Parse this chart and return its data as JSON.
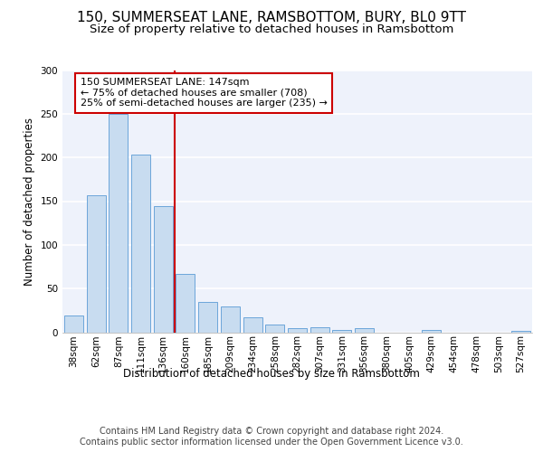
{
  "title1": "150, SUMMERSEAT LANE, RAMSBOTTOM, BURY, BL0 9TT",
  "title2": "Size of property relative to detached houses in Ramsbottom",
  "xlabel": "Distribution of detached houses by size in Ramsbottom",
  "ylabel": "Number of detached properties",
  "categories": [
    "38sqm",
    "62sqm",
    "87sqm",
    "111sqm",
    "136sqm",
    "160sqm",
    "185sqm",
    "209sqm",
    "234sqm",
    "258sqm",
    "282sqm",
    "307sqm",
    "331sqm",
    "356sqm",
    "380sqm",
    "405sqm",
    "429sqm",
    "454sqm",
    "478sqm",
    "503sqm",
    "527sqm"
  ],
  "values": [
    19,
    157,
    250,
    203,
    144,
    67,
    35,
    29,
    17,
    9,
    5,
    6,
    3,
    5,
    0,
    0,
    3,
    0,
    0,
    0,
    2
  ],
  "bar_color": "#c8dcf0",
  "bar_edge_color": "#5b9bd5",
  "vline_color": "#cc0000",
  "annotation_text": "150 SUMMERSEAT LANE: 147sqm\n← 75% of detached houses are smaller (708)\n25% of semi-detached houses are larger (235) →",
  "annotation_box_color": "white",
  "annotation_box_edge": "#cc0000",
  "ylim": [
    0,
    300
  ],
  "yticks": [
    0,
    50,
    100,
    150,
    200,
    250,
    300
  ],
  "bg_color": "#eef2fb",
  "footer_text": "Contains HM Land Registry data © Crown copyright and database right 2024.\nContains public sector information licensed under the Open Government Licence v3.0.",
  "title1_fontsize": 11,
  "title2_fontsize": 9.5,
  "xlabel_fontsize": 8.5,
  "ylabel_fontsize": 8.5,
  "tick_fontsize": 7.5,
  "footer_fontsize": 7.0,
  "ann_fontsize": 8.0
}
